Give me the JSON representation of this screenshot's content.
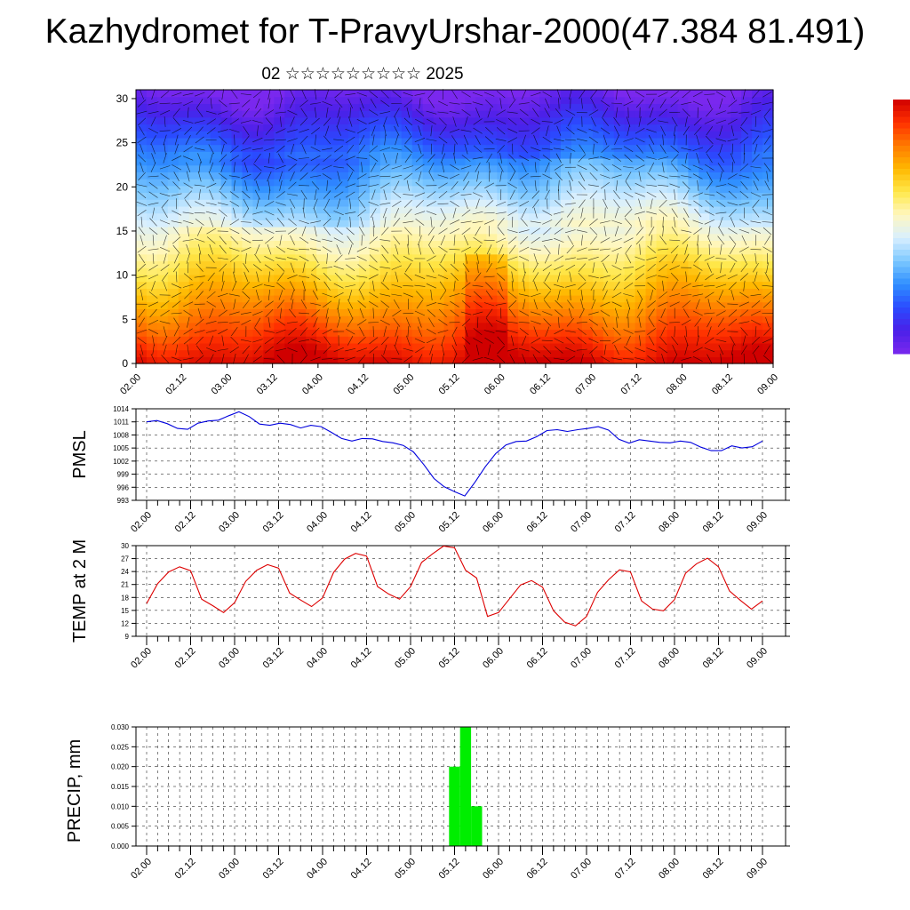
{
  "title": "Kazhydromet for T-PravyUrshar-2000(47.384 81.491)",
  "subtitle": "02 ☆☆☆☆☆☆☆☆☆ 2025",
  "time_ticks": [
    "02.00",
    "02.12",
    "03.00",
    "03.12",
    "04.00",
    "04.12",
    "05.00",
    "05.12",
    "06.00",
    "06.12",
    "07.00",
    "07.12",
    "08.00",
    "08.12",
    "09.00"
  ],
  "colors": {
    "pmsl_line": "#0000dd",
    "temp_line": "#dd0000",
    "precip_bar": "#00ee00"
  },
  "chart_data": [
    {
      "type": "heatmap",
      "title": "",
      "ylim": [
        0,
        31
      ],
      "y_ticks": [
        0,
        5,
        10,
        15,
        20,
        25,
        30
      ],
      "x_ticks": [
        "02.00",
        "02.12",
        "03.00",
        "03.12",
        "04.00",
        "04.12",
        "05.00",
        "05.12",
        "06.00",
        "06.12",
        "07.00",
        "07.12",
        "08.00",
        "08.12",
        "09.00"
      ],
      "colormap": [
        "#d00000",
        "#ff3000",
        "#ff7a00",
        "#ffb800",
        "#ffe84a",
        "#fff7c0",
        "#d8efff",
        "#7cc8ff",
        "#2f8fff",
        "#2a4bff",
        "#4a20e8",
        "#7a28ee"
      ],
      "overlay": "wind vectors",
      "colorbar": "vertical, right"
    },
    {
      "type": "line",
      "ylabel": "PMSL",
      "ylim": [
        993,
        1014
      ],
      "y_ticks": [
        993,
        996,
        999,
        1002,
        1005,
        1008,
        1011,
        1014
      ],
      "x_ticks": [
        "02.00",
        "02.12",
        "03.00",
        "03.12",
        "04.00",
        "04.12",
        "05.00",
        "05.12",
        "06.00",
        "06.12",
        "07.00",
        "07.12",
        "08.00",
        "08.12",
        "09.00"
      ],
      "series": [
        {
          "values": [
            1011,
            1011.3,
            1010.6,
            1009.5,
            1009.3,
            1010.7,
            1011.2,
            1011.4,
            1012.4,
            1013.3,
            1012.2,
            1010.5,
            1010.2,
            1010.7,
            1010.4,
            1009.6,
            1010.2,
            1009.9,
            1008.6,
            1007.2,
            1006.6,
            1007.2,
            1007.1,
            1006.5,
            1006.2,
            1005.6,
            1004.1,
            1001.2,
            998,
            996.1,
            995,
            994,
            997.2,
            1000.7,
            1003.7,
            1005.7,
            1006.5,
            1006.6,
            1007.6,
            1009,
            1009.2,
            1008.8,
            1009.2,
            1009.5,
            1009.9,
            1009.1,
            1007,
            1006.1,
            1006.9,
            1006.6,
            1006.3,
            1006.2,
            1006.6,
            1006.3,
            1005.2,
            1004.4,
            1004.4,
            1005.5,
            1005,
            1005.3,
            1006.6
          ]
        }
      ]
    },
    {
      "type": "line",
      "ylabel": "TEMP at 2 M",
      "ylim": [
        9,
        30
      ],
      "y_ticks": [
        9,
        12,
        15,
        18,
        21,
        24,
        27,
        30
      ],
      "x_ticks": [
        "02.00",
        "02.12",
        "03.00",
        "03.12",
        "04.00",
        "04.12",
        "05.00",
        "05.12",
        "06.00",
        "06.12",
        "07.00",
        "07.12",
        "08.00",
        "08.12",
        "09.00"
      ],
      "series": [
        {
          "values": [
            16.6,
            21.2,
            23.9,
            25.1,
            24.2,
            17.6,
            16.1,
            14.5,
            16.8,
            21.7,
            24.3,
            25.6,
            24.8,
            19,
            17.4,
            15.9,
            17.9,
            23.8,
            26.9,
            28.2,
            27.6,
            20.5,
            18.8,
            17.6,
            20.5,
            26.1,
            28.1,
            29.9,
            29.5,
            24.3,
            22.5,
            13.6,
            14.5,
            17.7,
            20.9,
            21.9,
            20.4,
            14.9,
            12.3,
            11.4,
            13.6,
            19.2,
            22.1,
            24.4,
            23.9,
            17.2,
            15.3,
            14.9,
            17.5,
            23.6,
            25.8,
            27.1,
            25.1,
            19.5,
            17.3,
            15.3,
            17.2
          ]
        }
      ]
    },
    {
      "type": "bar",
      "ylabel": "PRECIP, mm",
      "ylim": [
        0,
        0.03
      ],
      "y_ticks": [
        "0.000",
        "0.005",
        "0.010",
        "0.015",
        "0.020",
        "0.025",
        "0.030"
      ],
      "x_ticks": [
        "02.00",
        "02.12",
        "03.00",
        "03.12",
        "04.00",
        "04.12",
        "05.00",
        "05.12",
        "06.00",
        "06.12",
        "07.00",
        "07.12",
        "08.00",
        "08.12",
        "09.00"
      ],
      "bars": [
        {
          "time": "05.12",
          "value": 0.02
        },
        {
          "time": "05.15",
          "value": 0.03
        },
        {
          "time": "05.18",
          "value": 0.01
        }
      ]
    }
  ]
}
